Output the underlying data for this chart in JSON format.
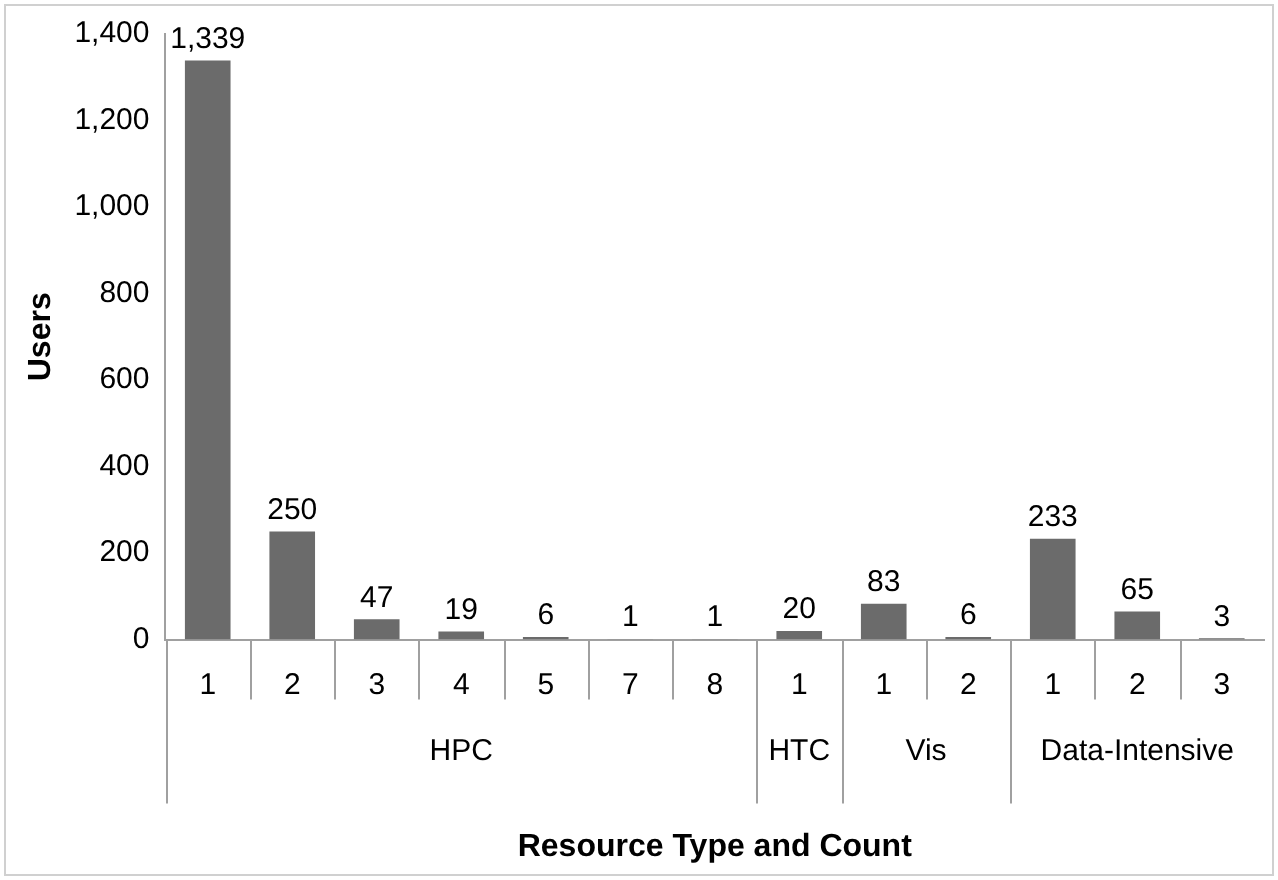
{
  "chart_data": {
    "type": "bar",
    "xlabel": "Resource Type and Count",
    "ylabel": "Users",
    "categories": [
      "1",
      "2",
      "3",
      "4",
      "5",
      "7",
      "8",
      "1",
      "1",
      "2",
      "1",
      "2",
      "3"
    ],
    "annotations": [
      "HPC",
      "HTC",
      "Vis",
      "Data-Intensive"
    ],
    "value_labels": [
      "1,339",
      "250",
      "47",
      "19",
      "6",
      "1",
      "1",
      "20",
      "83",
      "6",
      "233",
      "65",
      "3"
    ],
    "values": [
      1339,
      250,
      47,
      19,
      6,
      1,
      1,
      20,
      83,
      6,
      233,
      65,
      3
    ],
    "color": "#6b6b6b",
    "ylim": [
      0,
      1400
    ],
    "yticks": [
      0,
      200,
      400,
      600,
      800,
      {
        "value": 1000,
        "label": "1,000"
      },
      {
        "value": 1200,
        "label": "1,200"
      },
      {
        "value": 1400,
        "label": "1,400"
      }
    ],
    "grid": false,
    "legend": false
  }
}
